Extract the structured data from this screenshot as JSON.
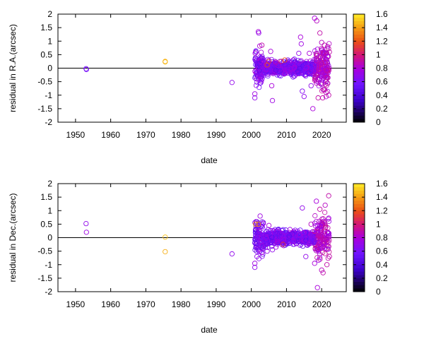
{
  "chart_data": [
    {
      "type": "scatter",
      "xlabel": "date",
      "ylabel": "residual in R.A.(arcsec)",
      "xlim": [
        1945,
        2027
      ],
      "ylim": [
        -2,
        2
      ],
      "xticks": [
        "1950",
        "1960",
        "1970",
        "1980",
        "1990",
        "2000",
        "2010",
        "2020"
      ],
      "yticks": [
        "-2",
        "-1.5",
        "-1",
        "-0.5",
        "0",
        "0.5",
        "1",
        "1.5",
        "2"
      ],
      "colorbar": {
        "range": [
          0,
          1.6
        ],
        "ticks": [
          "0",
          "0.2",
          "0.4",
          "0.6",
          "0.8",
          "1",
          "1.2",
          "1.4",
          "1.6"
        ]
      },
      "zero_line": true,
      "grid": false,
      "points": [
        {
          "x": 1953.0,
          "y": -0.02,
          "c": 0.6
        },
        {
          "x": 1953.1,
          "y": -0.05,
          "c": 0.6
        },
        {
          "x": 1975.5,
          "y": 0.23,
          "c": 1.5
        },
        {
          "x": 1975.5,
          "y": 0.25,
          "c": 1.45
        },
        {
          "x": 1994.5,
          "y": -0.53,
          "c": 0.7
        },
        {
          "x": 2001.0,
          "y": -1.1,
          "c": 0.7
        },
        {
          "x": 2001.0,
          "y": -0.95,
          "c": 0.75
        },
        {
          "x": 2001.1,
          "y": 0.55,
          "c": 0.8
        },
        {
          "x": 2001.2,
          "y": 0.35,
          "c": 0.7
        },
        {
          "x": 2001.5,
          "y": -0.4,
          "c": 0.8
        },
        {
          "x": 2002.0,
          "y": 1.35,
          "c": 0.8
        },
        {
          "x": 2002.1,
          "y": 1.3,
          "c": 0.7
        },
        {
          "x": 2002.4,
          "y": 0.82,
          "c": 0.8
        },
        {
          "x": 2002.5,
          "y": -0.55,
          "c": 0.6
        },
        {
          "x": 2003.0,
          "y": 0.85,
          "c": 0.9
        },
        {
          "x": 2003.5,
          "y": -0.15,
          "c": 0.65
        },
        {
          "x": 2004.5,
          "y": 0.12,
          "c": 1.2
        },
        {
          "x": 2005.0,
          "y": 0.25,
          "c": 1.1
        },
        {
          "x": 2005.5,
          "y": 0.62,
          "c": 0.8
        },
        {
          "x": 2005.8,
          "y": -0.65,
          "c": 0.8
        },
        {
          "x": 2006.0,
          "y": -1.2,
          "c": 0.75
        },
        {
          "x": 2007.0,
          "y": 0.22,
          "c": 0.9
        },
        {
          "x": 2008.5,
          "y": 0.25,
          "c": 1.0
        },
        {
          "x": 2009.5,
          "y": 0.3,
          "c": 1.2
        },
        {
          "x": 2012.0,
          "y": 0.3,
          "c": 0.75
        },
        {
          "x": 2013.5,
          "y": 0.55,
          "c": 0.7
        },
        {
          "x": 2014.0,
          "y": 1.15,
          "c": 0.8
        },
        {
          "x": 2014.2,
          "y": 0.9,
          "c": 0.75
        },
        {
          "x": 2014.5,
          "y": -0.85,
          "c": 0.65
        },
        {
          "x": 2015.0,
          "y": -1.05,
          "c": 0.7
        },
        {
          "x": 2016.5,
          "y": 0.55,
          "c": 0.8
        },
        {
          "x": 2017.0,
          "y": -0.65,
          "c": 0.7
        },
        {
          "x": 2017.5,
          "y": -1.5,
          "c": 0.8
        },
        {
          "x": 2018.0,
          "y": 1.85,
          "c": 0.8
        },
        {
          "x": 2018.6,
          "y": 1.75,
          "c": 0.85
        },
        {
          "x": 2019.0,
          "y": -1.1,
          "c": 0.9
        },
        {
          "x": 2019.5,
          "y": 1.3,
          "c": 0.9
        },
        {
          "x": 2020.0,
          "y": 0.95,
          "c": 0.85
        },
        {
          "x": 2020.3,
          "y": -1.1,
          "c": 0.9
        },
        {
          "x": 2020.8,
          "y": 0.85,
          "c": 0.9
        },
        {
          "x": 2021.3,
          "y": -0.9,
          "c": 0.9
        },
        {
          "x": 2021.7,
          "y": 0.8,
          "c": 0.85
        },
        {
          "x": 2022.0,
          "y": -1.0,
          "c": 0.9
        },
        {
          "x": 2022.2,
          "y": 0.6,
          "c": 0.9
        }
      ]
    },
    {
      "type": "scatter",
      "xlabel": "date",
      "ylabel": "residual in Dec.(arcsec)",
      "xlim": [
        1945,
        2027
      ],
      "ylim": [
        -2,
        2
      ],
      "xticks": [
        "1950",
        "1960",
        "1970",
        "1980",
        "1990",
        "2000",
        "2010",
        "2020"
      ],
      "yticks": [
        "-2",
        "-1.5",
        "-1",
        "-0.5",
        "0",
        "0.5",
        "1",
        "1.5",
        "2"
      ],
      "colorbar": {
        "range": [
          0,
          1.6
        ],
        "ticks": [
          "0",
          "0.2",
          "0.4",
          "0.6",
          "0.8",
          "1",
          "1.2",
          "1.4",
          "1.6"
        ]
      },
      "zero_line": true,
      "grid": false,
      "points": [
        {
          "x": 1953.0,
          "y": 0.52,
          "c": 0.7
        },
        {
          "x": 1953.1,
          "y": 0.2,
          "c": 0.75
        },
        {
          "x": 1975.5,
          "y": 0.02,
          "c": 1.5
        },
        {
          "x": 1975.5,
          "y": -0.52,
          "c": 1.45
        },
        {
          "x": 1994.5,
          "y": -0.6,
          "c": 0.7
        },
        {
          "x": 2001.0,
          "y": -1.1,
          "c": 0.7
        },
        {
          "x": 2001.0,
          "y": -0.95,
          "c": 0.75
        },
        {
          "x": 2001.2,
          "y": 0.5,
          "c": 1.3
        },
        {
          "x": 2001.6,
          "y": -0.7,
          "c": 0.7
        },
        {
          "x": 2002.0,
          "y": 0.5,
          "c": 1.4
        },
        {
          "x": 2002.5,
          "y": 0.8,
          "c": 0.75
        },
        {
          "x": 2003.0,
          "y": -0.55,
          "c": 0.8
        },
        {
          "x": 2004.0,
          "y": -0.35,
          "c": 0.7
        },
        {
          "x": 2004.5,
          "y": -0.5,
          "c": 0.7
        },
        {
          "x": 2005.0,
          "y": 0.45,
          "c": 0.8
        },
        {
          "x": 2006.0,
          "y": -0.45,
          "c": 0.7
        },
        {
          "x": 2007.0,
          "y": -0.35,
          "c": 0.75
        },
        {
          "x": 2009.0,
          "y": -0.25,
          "c": 1.1
        },
        {
          "x": 2011.0,
          "y": 0.3,
          "c": 0.75
        },
        {
          "x": 2014.5,
          "y": 1.1,
          "c": 0.7
        },
        {
          "x": 2015.5,
          "y": -0.7,
          "c": 0.7
        },
        {
          "x": 2017.0,
          "y": 0.5,
          "c": 0.85
        },
        {
          "x": 2018.0,
          "y": -0.95,
          "c": 0.8
        },
        {
          "x": 2018.5,
          "y": 1.35,
          "c": 0.8
        },
        {
          "x": 2018.8,
          "y": -1.85,
          "c": 0.8
        },
        {
          "x": 2019.5,
          "y": 1.05,
          "c": 0.9
        },
        {
          "x": 2020.0,
          "y": -1.2,
          "c": 0.85
        },
        {
          "x": 2020.4,
          "y": -1.3,
          "c": 0.9
        },
        {
          "x": 2021.0,
          "y": 1.2,
          "c": 0.85
        },
        {
          "x": 2021.5,
          "y": -1.0,
          "c": 0.9
        },
        {
          "x": 2022.0,
          "y": 1.55,
          "c": 0.9
        },
        {
          "x": 2022.2,
          "y": -0.7,
          "c": 0.9
        }
      ]
    }
  ]
}
